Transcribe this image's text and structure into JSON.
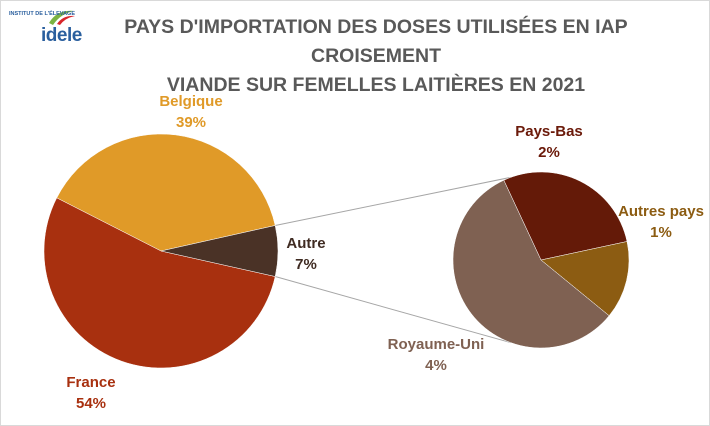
{
  "logo": {
    "text_top": "INSTITUT DE L'ÉLEVAGE",
    "wordmark": "idele"
  },
  "chart_data": {
    "type": "pie",
    "subtype": "pie-of-pie",
    "title_lines": [
      "PAYS D'IMPORTATION DES DOSES UTILISÉES EN IAP CROISEMENT",
      "VIANDE SUR FEMELLES LAITIÈRES EN 2021"
    ],
    "main_pie": {
      "slices": [
        {
          "name": "Belgique",
          "value": 39,
          "label": "39%",
          "color": "#E09A28"
        },
        {
          "name": "France",
          "value": 54,
          "label": "54%",
          "color": "#A8300F"
        },
        {
          "name": "Autre",
          "value": 7,
          "label": "7%",
          "color": "#4A3226"
        }
      ]
    },
    "secondary_pie": {
      "slices": [
        {
          "name": "Pays-Bas",
          "value": 2,
          "label": "2%",
          "color": "#641A08"
        },
        {
          "name": "Autres pays",
          "value": 1,
          "label": "1%",
          "color": "#8C5C12"
        },
        {
          "name": "Royaume-Uni",
          "value": 4,
          "label": "4%",
          "color": "#7F6152"
        }
      ]
    },
    "label_colors": {
      "Belgique": "#E09A28",
      "France": "#A8300F",
      "Autre": "#3F2B22",
      "Pays-Bas": "#6B1A0A",
      "Autres pays": "#8C5C12",
      "Royaume-Uni": "#7F6152"
    },
    "legend": "none"
  }
}
